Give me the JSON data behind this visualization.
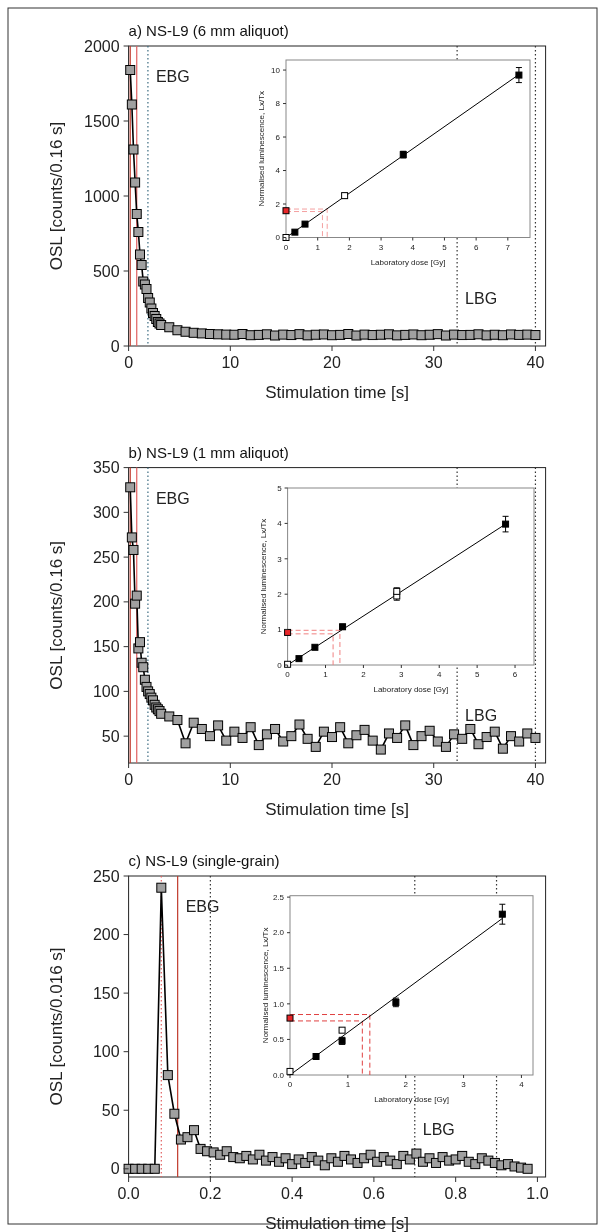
{
  "chart_data": [
    {
      "type": "line",
      "title": "a) NS-L9 (6 mm aliquot)",
      "xlabel": "Stimulation time [s]",
      "ylabel": "OSL [counts/0.16 s]",
      "xlim": [
        0,
        41
      ],
      "xticks": [
        0,
        10,
        20,
        30,
        40
      ],
      "ylim": [
        0,
        2000
      ],
      "yticks": [
        0,
        500,
        1000,
        1500,
        2000
      ],
      "marker": "square",
      "series": [
        {
          "color": "#a0a0a0",
          "x": [
            0.16,
            0.32,
            0.48,
            0.64,
            0.8,
            0.96,
            1.12,
            1.28,
            1.44,
            1.6,
            1.76,
            1.92,
            2.08,
            2.24,
            2.4,
            2.56,
            2.72,
            2.88,
            3.04,
            3.2,
            4.0,
            4.8,
            5.6,
            6.4,
            7.2,
            8.0,
            8.8,
            9.6,
            10.4,
            11.2,
            12.0,
            12.8,
            13.6,
            14.4,
            15.2,
            16.0,
            16.8,
            17.6,
            18.4,
            19.2,
            20.0,
            20.8,
            21.6,
            22.4,
            23.2,
            24.0,
            24.8,
            25.6,
            26.4,
            27.2,
            28.0,
            28.8,
            29.6,
            30.4,
            31.2,
            32.0,
            32.8,
            33.6,
            34.4,
            35.2,
            36.0,
            36.8,
            37.6,
            38.4,
            39.2,
            40.0
          ],
          "values": [
            1840,
            1610,
            1310,
            1090,
            880,
            760,
            610,
            540,
            430,
            410,
            380,
            320,
            290,
            250,
            220,
            200,
            180,
            160,
            150,
            140,
            125,
            105,
            95,
            88,
            84,
            80,
            78,
            76,
            75,
            80,
            72,
            74,
            78,
            70,
            76,
            73,
            79,
            71,
            75,
            77,
            72,
            74,
            80,
            70,
            76,
            73,
            75,
            78,
            71,
            74,
            77,
            72,
            75,
            79,
            70,
            76,
            73,
            74,
            78,
            71,
            75,
            72,
            77,
            74,
            76,
            73
          ]
        }
      ],
      "ref_lines": [
        {
          "axis": "x",
          "value": 0.16,
          "color": "#c0392b",
          "line_style": "solid"
        },
        {
          "axis": "x",
          "value": 0.8,
          "color": "#e06060",
          "line_style": "solid"
        },
        {
          "axis": "x",
          "value": 1.9,
          "color": "#3a6a80",
          "line_style": "dotted",
          "label": "EBG"
        },
        {
          "axis": "x",
          "value": 32.3,
          "color": "#333333",
          "line_style": "dotted",
          "label": "LBG"
        },
        {
          "axis": "x",
          "value": 40,
          "color": "#333333",
          "line_style": "dotted"
        }
      ]
    },
    {
      "type": "scatter",
      "xlabel": "Laboratory dose [Gy]",
      "ylabel": "Normalised luminescence, Lx/Tx",
      "xlim": [
        0,
        7.7
      ],
      "xticks": [
        0,
        1,
        2,
        3,
        4,
        5,
        6,
        7
      ],
      "ylim": [
        0,
        10.6
      ],
      "yticks": [
        0,
        2,
        4,
        6,
        8,
        10
      ],
      "marker": "square",
      "series": [
        {
          "type": "line",
          "marker": "none",
          "color": "#f4a0a0",
          "line_style": "dashed",
          "x": [
            0,
            1.15,
            1.15
          ],
          "values": [
            1.55,
            1.55,
            0
          ]
        },
        {
          "type": "line",
          "marker": "none",
          "color": "#f4a0a0",
          "line_style": "dashed",
          "x": [
            0,
            1.3,
            1.3
          ],
          "values": [
            1.7,
            1.7,
            0
          ]
        },
        {
          "type": "line",
          "marker": "none",
          "color": "#000000",
          "x": [
            0,
            7.4
          ],
          "values": [
            0,
            9.8
          ]
        },
        {
          "color": "#000000",
          "x": [
            0.28,
            0.6,
            3.7,
            7.35
          ],
          "values": [
            0.32,
            0.8,
            4.95,
            9.7
          ],
          "errors": [
            null,
            null,
            0.2,
            0.45
          ]
        },
        {
          "color": "#ffffff",
          "x": [
            0,
            1.85
          ],
          "values": [
            0,
            2.5
          ],
          "errors": [
            null,
            0.15
          ]
        },
        {
          "color": "#e8272a",
          "x": [
            0
          ],
          "values": [
            1.6
          ]
        }
      ]
    },
    {
      "type": "line",
      "title": "b) NS-L9 (1 mm aliquot)",
      "xlabel": "Stimulation time [s]",
      "ylabel": "OSL [counts/0.16 s]",
      "xlim": [
        0,
        41
      ],
      "xticks": [
        0,
        10,
        20,
        30,
        40
      ],
      "ylim": [
        20,
        350
      ],
      "yticks": [
        50,
        100,
        150,
        200,
        250,
        300,
        350
      ],
      "marker": "square",
      "series": [
        {
          "color": "#a0a0a0",
          "x": [
            0.16,
            0.32,
            0.48,
            0.64,
            0.8,
            0.96,
            1.12,
            1.28,
            1.44,
            1.6,
            1.76,
            1.92,
            2.08,
            2.24,
            2.4,
            2.56,
            2.72,
            2.88,
            3.04,
            3.2,
            4.0,
            4.8,
            5.6,
            6.4,
            7.2,
            8.0,
            8.8,
            9.6,
            10.4,
            11.2,
            12.0,
            12.8,
            13.6,
            14.4,
            15.2,
            16.0,
            16.8,
            17.6,
            18.4,
            19.2,
            20.0,
            20.8,
            21.6,
            22.4,
            23.2,
            24.0,
            24.8,
            25.6,
            26.4,
            27.2,
            28.0,
            28.8,
            29.6,
            30.4,
            31.2,
            32.0,
            32.8,
            33.6,
            34.4,
            35.2,
            36.0,
            36.8,
            37.6,
            38.4,
            39.2,
            40.0
          ],
          "values": [
            328,
            272,
            258,
            198,
            207,
            148,
            155,
            132,
            127,
            113,
            105,
            100,
            97,
            93,
            90,
            85,
            82,
            80,
            78,
            75,
            72,
            68,
            42,
            65,
            58,
            50,
            62,
            45,
            55,
            48,
            60,
            40,
            52,
            58,
            44,
            50,
            63,
            47,
            38,
            55,
            49,
            60,
            42,
            51,
            57,
            45,
            35,
            53,
            48,
            62,
            40,
            50,
            56,
            44,
            38,
            52,
            47,
            58,
            41,
            49,
            55,
            36,
            50,
            44,
            53,
            48
          ]
        }
      ],
      "ref_lines": [
        {
          "axis": "x",
          "value": 0.16,
          "color": "#c0392b",
          "line_style": "solid"
        },
        {
          "axis": "x",
          "value": 0.8,
          "color": "#e06060",
          "line_style": "solid"
        },
        {
          "axis": "x",
          "value": 1.9,
          "color": "#3a6a80",
          "line_style": "dotted",
          "label": "EBG"
        },
        {
          "axis": "x",
          "value": 32.3,
          "color": "#333333",
          "line_style": "dotted",
          "label": "LBG"
        },
        {
          "axis": "x",
          "value": 40,
          "color": "#333333",
          "line_style": "dotted"
        }
      ]
    },
    {
      "type": "scatter",
      "xlabel": "Laboratory dose [Gy]",
      "ylabel": "Normalised luminescence, Lx/Tx",
      "xlim": [
        0,
        6.5
      ],
      "xticks": [
        0,
        1,
        2,
        3,
        4,
        5,
        6
      ],
      "ylim": [
        0,
        5
      ],
      "yticks": [
        0,
        1,
        2,
        3,
        4,
        5
      ],
      "marker": "square",
      "series": [
        {
          "type": "line",
          "marker": "none",
          "color": "#f08080",
          "line_style": "dashed",
          "x": [
            0,
            1.2,
            1.2
          ],
          "values": [
            0.88,
            0.88,
            0
          ]
        },
        {
          "type": "line",
          "marker": "none",
          "color": "#f08080",
          "line_style": "dashed",
          "x": [
            0,
            1.38,
            1.38
          ],
          "values": [
            0.98,
            0.98,
            0
          ]
        },
        {
          "type": "line",
          "marker": "none",
          "color": "#000000",
          "x": [
            0,
            5.75
          ],
          "values": [
            0,
            3.98
          ]
        },
        {
          "color": "#000000",
          "x": [
            0.3,
            0.72,
            1.45,
            5.75
          ],
          "values": [
            0.18,
            0.5,
            1.08,
            3.98
          ],
          "errors": [
            null,
            null,
            0.07,
            0.22
          ]
        },
        {
          "color": "#ffffff",
          "x": [
            0,
            2.88,
            2.88
          ],
          "values": [
            0.02,
            1.95,
            2.08
          ],
          "errors": [
            null,
            0.12,
            0.1
          ]
        },
        {
          "color": "#e8272a",
          "x": [
            0
          ],
          "values": [
            0.92
          ]
        }
      ]
    },
    {
      "type": "line",
      "title": "c) NS-L9 (single-grain)",
      "xlabel": "Stimulation time [s]",
      "ylabel": "OSL [counts/0.016 s]",
      "xlim": [
        0,
        1.02
      ],
      "xticks": [
        {
          "value": 0,
          "label": "0.0"
        },
        {
          "value": 0.2,
          "label": "0.2"
        },
        {
          "value": 0.4,
          "label": "0.4"
        },
        {
          "value": 0.6,
          "label": "0.6"
        },
        {
          "value": 0.8,
          "label": "0.8"
        },
        {
          "value": 1,
          "label": "1.0"
        }
      ],
      "ylim": [
        -7,
        250
      ],
      "yticks": [
        0,
        50,
        100,
        150,
        200,
        250
      ],
      "marker": "square",
      "series": [
        {
          "color": "#a0a0a0",
          "x": [
            0,
            0.016,
            0.032,
            0.048,
            0.064,
            0.08,
            0.096,
            0.112,
            0.128,
            0.144,
            0.16,
            0.176,
            0.192,
            0.208,
            0.224,
            0.24,
            0.256,
            0.272,
            0.288,
            0.304,
            0.32,
            0.336,
            0.352,
            0.368,
            0.384,
            0.4,
            0.416,
            0.432,
            0.448,
            0.464,
            0.48,
            0.496,
            0.512,
            0.528,
            0.544,
            0.56,
            0.576,
            0.592,
            0.608,
            0.624,
            0.64,
            0.656,
            0.672,
            0.688,
            0.704,
            0.72,
            0.736,
            0.752,
            0.768,
            0.784,
            0.8,
            0.816,
            0.832,
            0.848,
            0.864,
            0.88,
            0.896,
            0.912,
            0.928,
            0.944,
            0.96,
            0.976
          ],
          "values": [
            0,
            0,
            0,
            0,
            0,
            240,
            80,
            47,
            25,
            27,
            33,
            17,
            15,
            14,
            12,
            15,
            10,
            9,
            11,
            8,
            12,
            7,
            10,
            6,
            9,
            4,
            8,
            5,
            10,
            7,
            3,
            9,
            6,
            11,
            8,
            5,
            9,
            12,
            6,
            10,
            7,
            4,
            11,
            8,
            13,
            6,
            9,
            5,
            10,
            7,
            8,
            11,
            6,
            4,
            9,
            7,
            5,
            3,
            4,
            2,
            1,
            0
          ]
        }
      ],
      "ref_lines": [
        {
          "axis": "x",
          "value": 0.08,
          "color": "#e06060",
          "line_style": "dotted"
        },
        {
          "axis": "x",
          "value": 0.12,
          "color": "#c0392b",
          "line_style": "solid",
          "label": "EBG"
        },
        {
          "axis": "x",
          "value": 0.2,
          "color": "#333333",
          "line_style": "dotted"
        },
        {
          "axis": "x",
          "value": 0.7,
          "color": "#333333",
          "line_style": "dotted",
          "label": "LBG"
        },
        {
          "axis": "x",
          "value": 0.9,
          "color": "#333333",
          "line_style": "dotted"
        }
      ]
    },
    {
      "type": "scatter",
      "xlabel": "Laboratory dose [Gy]",
      "ylabel": "Normalised luminescence, Lx/Tx",
      "xlim": [
        0,
        4.2
      ],
      "xticks": [
        0,
        1,
        2,
        3,
        4
      ],
      "ylim": [
        0,
        2.52
      ],
      "yticks": [
        {
          "value": 0,
          "label": "0.0"
        },
        {
          "value": 0.5,
          "label": "0.5"
        },
        {
          "value": 1,
          "label": "1.0"
        },
        {
          "value": 1.5,
          "label": "1.5"
        },
        {
          "value": 2,
          "label": "2.0"
        },
        {
          "value": 2.5,
          "label": "2.5"
        }
      ],
      "marker": "square",
      "series": [
        {
          "type": "line",
          "marker": "none",
          "color": "#e04040",
          "line_style": "dashed",
          "x": [
            0,
            1.25,
            1.25
          ],
          "values": [
            0.76,
            0.76,
            0
          ]
        },
        {
          "type": "line",
          "marker": "none",
          "color": "#e04040",
          "line_style": "dashed",
          "x": [
            0,
            1.38,
            1.38
          ],
          "values": [
            0.85,
            0.85,
            0
          ]
        },
        {
          "type": "line",
          "marker": "none",
          "color": "#000000",
          "x": [
            0,
            3.67
          ],
          "values": [
            0,
            2.2
          ]
        },
        {
          "color": "#000000",
          "x": [
            0.45,
            0.9,
            1.83,
            3.67
          ],
          "values": [
            0.26,
            0.48,
            1.02,
            2.26
          ],
          "errors": [
            null,
            0.05,
            0.06,
            0.14
          ]
        },
        {
          "color": "#ffffff",
          "x": [
            0,
            0.9
          ],
          "values": [
            0.05,
            0.63
          ]
        },
        {
          "color": "#e8272a",
          "x": [
            0
          ],
          "values": [
            0.8
          ]
        }
      ]
    }
  ]
}
